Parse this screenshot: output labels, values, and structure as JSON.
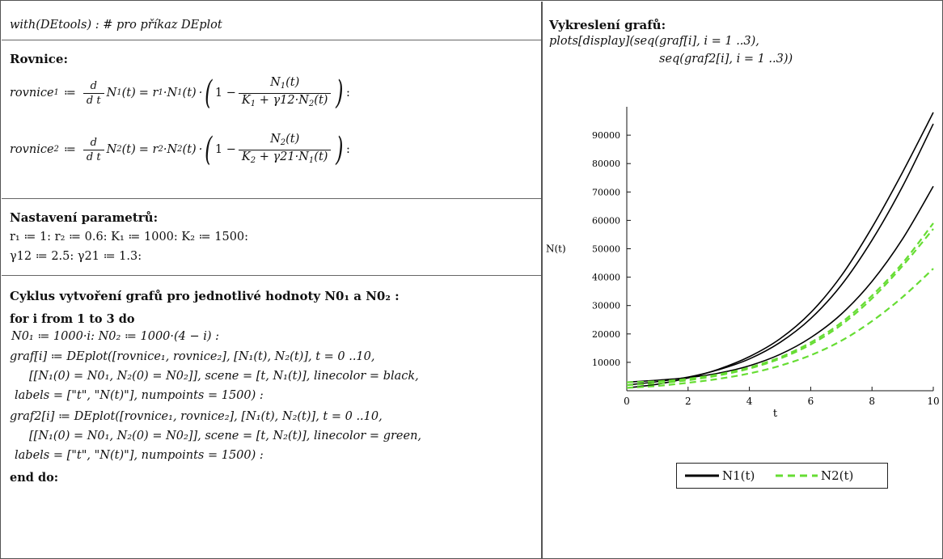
{
  "left": {
    "line_with": "with(DEtools) :  # pro příkaz DEplot",
    "hd_rovnice": "Rovnice:",
    "eq1": {
      "lhs": "rovnice",
      "lhs_sub": "1",
      "assign": "≔",
      "d": "d",
      "dt": "d t",
      "n_func": "N",
      "sub1": "1",
      "t_arg": "(t)",
      "rhs_start": "= r",
      "mult": "·N",
      "one_minus": "1 −",
      "num": "N",
      "num_sub": "1",
      "den_K": "K",
      "den_K_sub": "1",
      "den_plus": "+ γ12·N",
      "den_N_sub": "2",
      "end": ":"
    },
    "eq2": {
      "lhs": "rovnice",
      "lhs_sub": "2",
      "num_sub": "2",
      "den_K_sub": "2",
      "den_plus": "+ γ21·N",
      "den_N_sub": "1",
      "end": ":"
    },
    "hd_params": "Nastavení parametrů:",
    "params_line1": "r₁ ≔ 1:      r₂ ≔ 0.6:   K₁ ≔ 1000:  K₂ ≔ 1500:",
    "params_line2": "γ12 ≔ 2.5:  γ21 ≔ 1.3:",
    "hd_cycle": "Cyklus vytvoření grafů pro jednotlivé hodnoty N0₁ a  N0₂ :",
    "for_line": "for i from 1 to 3 do",
    "n0_line": "N0₁ ≔ 1000·i:  N0₂ ≔ 1000·(4 − i) :",
    "graf_line1": "graf[i] ≔ DEplot([rovnice₁, rovnice₂], [N₁(t), N₂(t)], t = 0 ..10,",
    "graf_line2": "[[N₁(0) = N0₁, N₂(0) = N0₂]], scene = [t, N₁(t)], linecolor = black,",
    "graf_line3": "labels = [\"t\", \"N(t)\"], numpoints = 1500) :",
    "graf2_line1": "graf2[i] ≔ DEplot([rovnice₁, rovnice₂], [N₁(t), N₂(t)], t = 0 ..10,",
    "graf2_line2": "[[N₁(0) = N0₁, N₂(0) = N0₂]], scene = [t, N₂(t)], linecolor = green,",
    "graf2_line3": "labels = [\"t\", \"N(t)\"], numpoints = 1500) :",
    "end_do": "end do:"
  },
  "right": {
    "hd_draw": "Vykreslení grafů:",
    "display_line1": "plots[display](seq(graf[i], i = 1 ..3),",
    "display_line2": "seq(graf2[i], i = 1 ..3))"
  },
  "chart_data": {
    "type": "line",
    "title": "",
    "xlabel": "t",
    "ylabel": "N(t)",
    "xlim": [
      0,
      10
    ],
    "ylim": [
      0,
      100000
    ],
    "x_ticks": [
      0,
      2,
      4,
      6,
      8,
      10
    ],
    "y_ticks": [
      10000,
      20000,
      30000,
      40000,
      50000,
      60000,
      70000,
      80000,
      90000
    ],
    "x_tick_labels": [
      "0",
      "2",
      "4",
      "6",
      "8",
      "10"
    ],
    "y_tick_labels": [
      "10000",
      "20000",
      "30000",
      "40000",
      "50000",
      "60000",
      "70000",
      "80000",
      "90000"
    ],
    "x": [
      0,
      1,
      2,
      3,
      4,
      5,
      6,
      7,
      8,
      9,
      10
    ],
    "series": [
      {
        "name": "N1(t)",
        "color": "#000000",
        "dash": "solid",
        "values": [
          1000,
          2300,
          4500,
          7600,
          12000,
          18300,
          27500,
          40500,
          57500,
          77000,
          98000
        ]
      },
      {
        "name": "N1(t)",
        "color": "#000000",
        "dash": "solid",
        "values": [
          2000,
          3200,
          4800,
          7400,
          11200,
          17000,
          25400,
          37200,
          53000,
          72000,
          94000
        ]
      },
      {
        "name": "N1(t)",
        "color": "#000000",
        "dash": "solid",
        "values": [
          3000,
          3700,
          4600,
          6200,
          8800,
          12800,
          18700,
          27000,
          38500,
          53500,
          72000
        ]
      },
      {
        "name": "N2(t)",
        "color": "#66dd33",
        "dash": "dashed",
        "values": [
          3000,
          3300,
          4200,
          5800,
          8200,
          11800,
          17000,
          24000,
          33500,
          45000,
          59000
        ]
      },
      {
        "name": "N2(t)",
        "color": "#66dd33",
        "dash": "dashed",
        "values": [
          2000,
          2600,
          3700,
          5400,
          7800,
          11300,
          16300,
          23200,
          32500,
          44000,
          57000
        ]
      },
      {
        "name": "N2(t)",
        "color": "#66dd33",
        "dash": "dashed",
        "values": [
          1000,
          1700,
          2800,
          4200,
          6100,
          8800,
          12500,
          17600,
          24500,
          33000,
          43000
        ]
      }
    ],
    "legend": {
      "placement": "bottom",
      "entries": [
        {
          "label": "N1(t)",
          "color": "#000000",
          "dash": "solid"
        },
        {
          "label": "N2(t)",
          "color": "#66dd33",
          "dash": "dashed"
        }
      ]
    },
    "grid": false
  }
}
